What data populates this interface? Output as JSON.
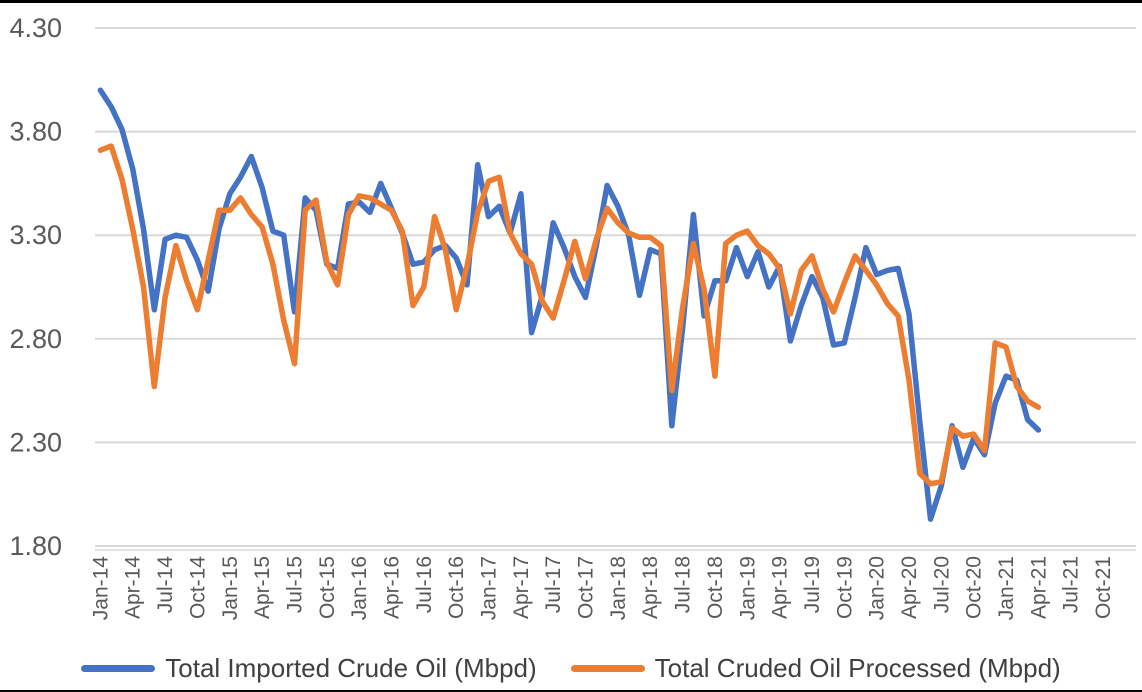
{
  "chart_data": {
    "type": "line",
    "title": "",
    "xlabel": "",
    "ylabel": "",
    "grid": true,
    "legend_position": "bottom",
    "text_color": "#595959",
    "grid_color": "#D9D9D9",
    "background": "#FFFFFF",
    "y_axis": {
      "min": 1.8,
      "max": 4.3,
      "ticks": [
        "4.30",
        "3.80",
        "3.30",
        "2.80",
        "2.30",
        "1.80"
      ]
    },
    "x_tick_every": 3,
    "x_tick_last_index": 93,
    "categories": [
      "Jan-14",
      "Feb-14",
      "Mar-14",
      "Apr-14",
      "May-14",
      "Jun-14",
      "Jul-14",
      "Aug-14",
      "Sep-14",
      "Oct-14",
      "Nov-14",
      "Dec-14",
      "Jan-15",
      "Feb-15",
      "Mar-15",
      "Apr-15",
      "May-15",
      "Jun-15",
      "Jul-15",
      "Aug-15",
      "Sep-15",
      "Oct-15",
      "Nov-15",
      "Dec-15",
      "Jan-16",
      "Feb-16",
      "Mar-16",
      "Apr-16",
      "May-16",
      "Jun-16",
      "Jul-16",
      "Aug-16",
      "Sep-16",
      "Oct-16",
      "Nov-16",
      "Dec-16",
      "Jan-17",
      "Feb-17",
      "Mar-17",
      "Apr-17",
      "May-17",
      "Jun-17",
      "Jul-17",
      "Aug-17",
      "Sep-17",
      "Oct-17",
      "Nov-17",
      "Dec-17",
      "Jan-18",
      "Feb-18",
      "Mar-18",
      "Apr-18",
      "May-18",
      "Jun-18",
      "Jul-18",
      "Aug-18",
      "Sep-18",
      "Oct-18",
      "Nov-18",
      "Dec-18",
      "Jan-19",
      "Feb-19",
      "Mar-19",
      "Apr-19",
      "May-19",
      "Jun-19",
      "Jul-19",
      "Aug-19",
      "Sep-19",
      "Oct-19",
      "Nov-19",
      "Dec-19",
      "Jan-20",
      "Feb-20",
      "Mar-20",
      "Apr-20",
      "May-20",
      "Jun-20",
      "Jul-20",
      "Aug-20",
      "Sep-20",
      "Oct-20",
      "Nov-20",
      "Dec-20",
      "Jan-21",
      "Feb-21",
      "Mar-21",
      "Apr-21",
      "May-21",
      "Jun-21",
      "Jul-21",
      "Aug-21",
      "Sep-21",
      "Oct-21",
      "Nov-21",
      "Dec-21"
    ],
    "series": [
      {
        "name": "Total Imported Crude Oil (Mbpd)",
        "color": "#4472C4",
        "values": [
          4.0,
          3.92,
          3.81,
          3.62,
          3.33,
          2.94,
          3.28,
          3.3,
          3.29,
          3.18,
          3.03,
          3.33,
          3.5,
          3.58,
          3.68,
          3.53,
          3.32,
          3.3,
          2.93,
          3.48,
          3.42,
          3.16,
          3.14,
          3.45,
          3.46,
          3.41,
          3.55,
          3.43,
          3.31,
          3.16,
          3.17,
          3.23,
          3.25,
          3.19,
          3.06,
          3.64,
          3.39,
          3.44,
          3.31,
          3.5,
          2.83,
          3.01,
          3.36,
          3.24,
          3.1,
          3.0,
          3.25,
          3.54,
          3.44,
          3.3,
          3.01,
          3.23,
          3.21,
          2.38,
          2.85,
          3.4,
          2.91,
          3.08,
          3.08,
          3.24,
          3.1,
          3.22,
          3.05,
          3.15,
          2.79,
          2.96,
          3.1,
          3.0,
          2.77,
          2.78,
          3.0,
          3.24,
          3.11,
          3.13,
          3.14,
          2.92,
          2.4,
          1.93,
          2.09,
          2.38,
          2.18,
          2.32,
          2.24,
          2.49,
          2.62,
          2.6,
          2.41,
          2.36
        ]
      },
      {
        "name": "Total Cruded Oil Processed (Mbpd)",
        "color": "#ED7D31",
        "values": [
          3.71,
          3.73,
          3.57,
          3.33,
          3.05,
          2.57,
          3.0,
          3.25,
          3.08,
          2.94,
          3.18,
          3.42,
          3.42,
          3.48,
          3.4,
          3.34,
          3.16,
          2.89,
          2.68,
          3.42,
          3.47,
          3.17,
          3.06,
          3.4,
          3.49,
          3.48,
          3.45,
          3.42,
          3.32,
          2.96,
          3.05,
          3.39,
          3.23,
          2.94,
          3.15,
          3.41,
          3.56,
          3.58,
          3.31,
          3.21,
          3.16,
          2.98,
          2.9,
          3.08,
          3.27,
          3.09,
          3.28,
          3.43,
          3.36,
          3.31,
          3.29,
          3.29,
          3.25,
          2.55,
          2.95,
          3.26,
          3.04,
          2.62,
          3.26,
          3.3,
          3.32,
          3.25,
          3.21,
          3.14,
          2.92,
          3.13,
          3.2,
          3.04,
          2.93,
          3.07,
          3.2,
          3.13,
          3.06,
          2.97,
          2.91,
          2.6,
          2.15,
          2.1,
          2.11,
          2.37,
          2.33,
          2.34,
          2.26,
          2.78,
          2.76,
          2.57,
          2.5,
          2.47
        ]
      }
    ]
  }
}
